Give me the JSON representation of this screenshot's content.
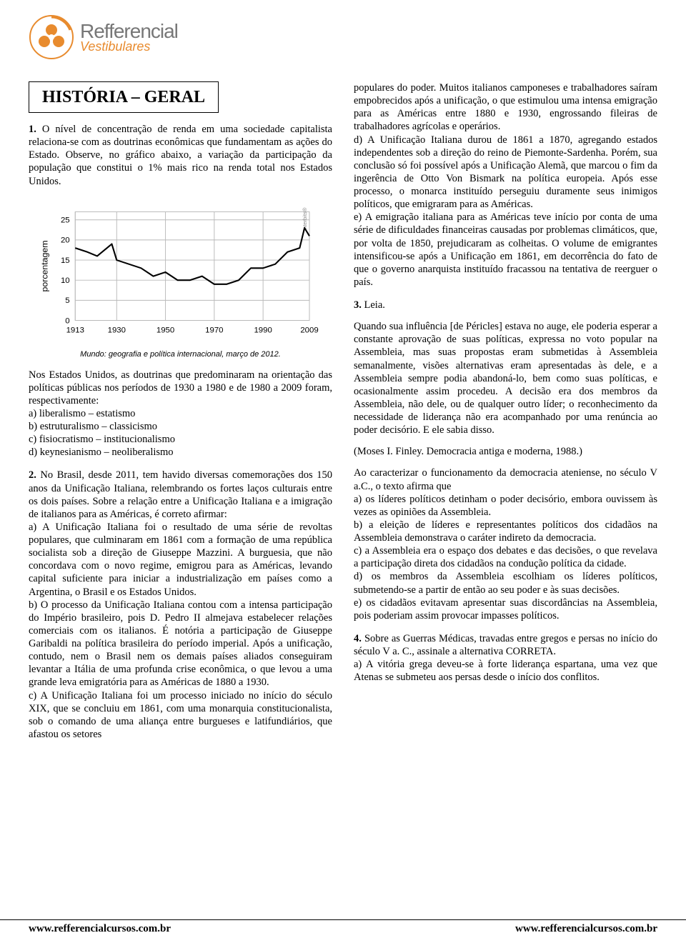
{
  "logo": {
    "line1": "Refferencial",
    "line2": "Vestibulares"
  },
  "title": "HISTÓRIA – GERAL",
  "chart": {
    "type": "line",
    "ylabel": "porcentagem",
    "watermark": "Interbits®",
    "yticks": [
      0,
      5,
      10,
      15,
      20,
      25
    ],
    "xticks": [
      1913,
      1930,
      1950,
      1970,
      1990,
      2009
    ],
    "series_x": [
      1913,
      1918,
      1922,
      1928,
      1930,
      1935,
      1940,
      1945,
      1950,
      1955,
      1960,
      1965,
      1970,
      1975,
      1980,
      1985,
      1990,
      1995,
      2000,
      2005,
      2007,
      2009
    ],
    "series_y": [
      18,
      17,
      16,
      19,
      15,
      14,
      13,
      11,
      12,
      10,
      10,
      11,
      9,
      9,
      10,
      13,
      13,
      14,
      17,
      18,
      23,
      21
    ],
    "line_color": "#000000",
    "grid_color": "#b9b9b9",
    "background_color": "#ffffff",
    "line_width": 2.2,
    "xlim": [
      1913,
      2009
    ],
    "ylim": [
      0,
      27
    ],
    "caption": "Mundo: geografia e política internacional, março de 2012."
  },
  "q1": {
    "num": "1.",
    "text": "O nível de concentração de renda em uma sociedade capitalista relaciona-se com as doutrinas econômicas que fundamentam as ações do Estado. Observe, no gráfico abaixo, a variação da participação da população que constitui o 1% mais rico na renda total nos Estados Unidos.",
    "after": "Nos Estados Unidos, as doutrinas que predominaram na orientação das políticas públicas nos períodos de 1930 a 1980 e de 1980 a 2009 foram, respectivamente:",
    "a": "a) liberalismo – estatismo",
    "b": "b) estruturalismo – classicismo",
    "c": "c) fisiocratismo – institucionalismo",
    "d": "d) keynesianismo – neoliberalismo"
  },
  "q2": {
    "num": "2.",
    "text": "No Brasil, desde 2011, tem havido diversas comemorações dos 150 anos da Unificação Italiana, relembrando os fortes laços culturais entre os dois países. Sobre a relação entre a Unificação Italiana e a imigração de italianos para as Américas, é correto afirmar:",
    "a": "a) A Unificação Italiana foi o resultado de uma série de revoltas populares, que culminaram em 1861 com a formação de uma república socialista sob a direção de Giuseppe Mazzini. A burguesia, que não concordava com o novo regime, emigrou para as Américas, levando capital suficiente para iniciar a industrialização em países como a Argentina, o Brasil e os Estados Unidos.",
    "b": "b) O processo da Unificação Italiana contou com a intensa participação do Império brasileiro, pois D. Pedro II almejava estabelecer relações comerciais com os italianos. É notória a participação de Giuseppe Garibaldi na política brasileira do período imperial. Após a unificação, contudo, nem o Brasil nem os demais países aliados conseguiram levantar a Itália de uma profunda crise econômica, o que levou a uma grande leva emigratória para as Américas de 1880 a 1930.",
    "c": "c) A Unificação Italiana foi um processo iniciado no início do século XIX, que se concluiu em 1861, com uma monarquia constitucionalista, sob o comando de uma aliança entre burgueses e latifundiários, que afastou os setores",
    "c_cont": "populares do poder. Muitos italianos camponeses e trabalhadores saíram empobrecidos após a unificação, o que estimulou uma intensa emigração para as Américas entre 1880 e 1930, engrossando fileiras de trabalhadores agrícolas e operários.",
    "d": "d) A Unificação Italiana durou de 1861 a 1870, agregando estados independentes sob a direção do reino de Piemonte-Sardenha. Porém, sua conclusão só foi possível após a Unificação Alemã, que marcou o fim da ingerência de Otto Von Bismark na política europeia. Após esse processo, o monarca instituído perseguiu duramente seus inimigos políticos, que emigraram para as Américas.",
    "e": "e) A emigração italiana para as Américas teve início por conta de uma série de dificuldades financeiras causadas por problemas climáticos, que, por volta de 1850, prejudicaram as colheitas. O volume de emigrantes intensificou-se após a Unificação em 1861, em decorrência do fato de que o governo anarquista instituído fracassou na tentativa de reerguer o país."
  },
  "q3": {
    "num": "3.",
    "lead": "Leia.",
    "quote": "Quando sua influência [de Péricles] estava no auge, ele poderia esperar a constante aprovação de suas políticas, expressa no voto popular na Assembleia, mas suas propostas eram submetidas à Assembleia semanalmente, visões alternativas eram apresentadas às dele, e a Assembleia sempre podia abandoná-lo, bem como suas políticas, e ocasionalmente assim procedeu. A decisão era dos membros da Assembleia, não dele, ou de qualquer outro líder; o reconhecimento da necessidade de liderança não era acompanhado por uma renúncia ao poder decisório. E ele sabia disso.",
    "cite": "(Moses I. Finley. Democracia antiga e moderna, 1988.)",
    "stem": "Ao caracterizar o funcionamento da democracia ateniense, no século V a.C., o texto afirma que",
    "a": "a) os líderes políticos detinham o poder decisório, embora ouvissem às vezes as opiniões da Assembleia.",
    "b": "b) a eleição de líderes e representantes políticos dos cidadãos na Assembleia demonstrava o caráter indireto da democracia.",
    "c": "c) a Assembleia era o espaço dos debates e das decisões, o que revelava a participação direta dos cidadãos na condução política da cidade.",
    "d": "d) os membros da Assembleia escolhiam os líderes políticos, submetendo-se a partir de então ao seu poder e às suas decisões.",
    "e": "e) os cidadãos evitavam apresentar suas discordâncias na Assembleia, pois poderiam assim provocar impasses políticos."
  },
  "q4": {
    "num": "4.",
    "text": "Sobre as Guerras Médicas, travadas entre gregos e persas no início do século V a. C., assinale a alternativa CORRETA.",
    "a": "a) A vitória grega deveu-se à forte liderança espartana, uma vez que Atenas se submeteu aos persas desde o início dos conflitos."
  },
  "footer": {
    "left": "www.refferencialcursos.com.br",
    "right": "www.refferencialcursos.com.br"
  }
}
